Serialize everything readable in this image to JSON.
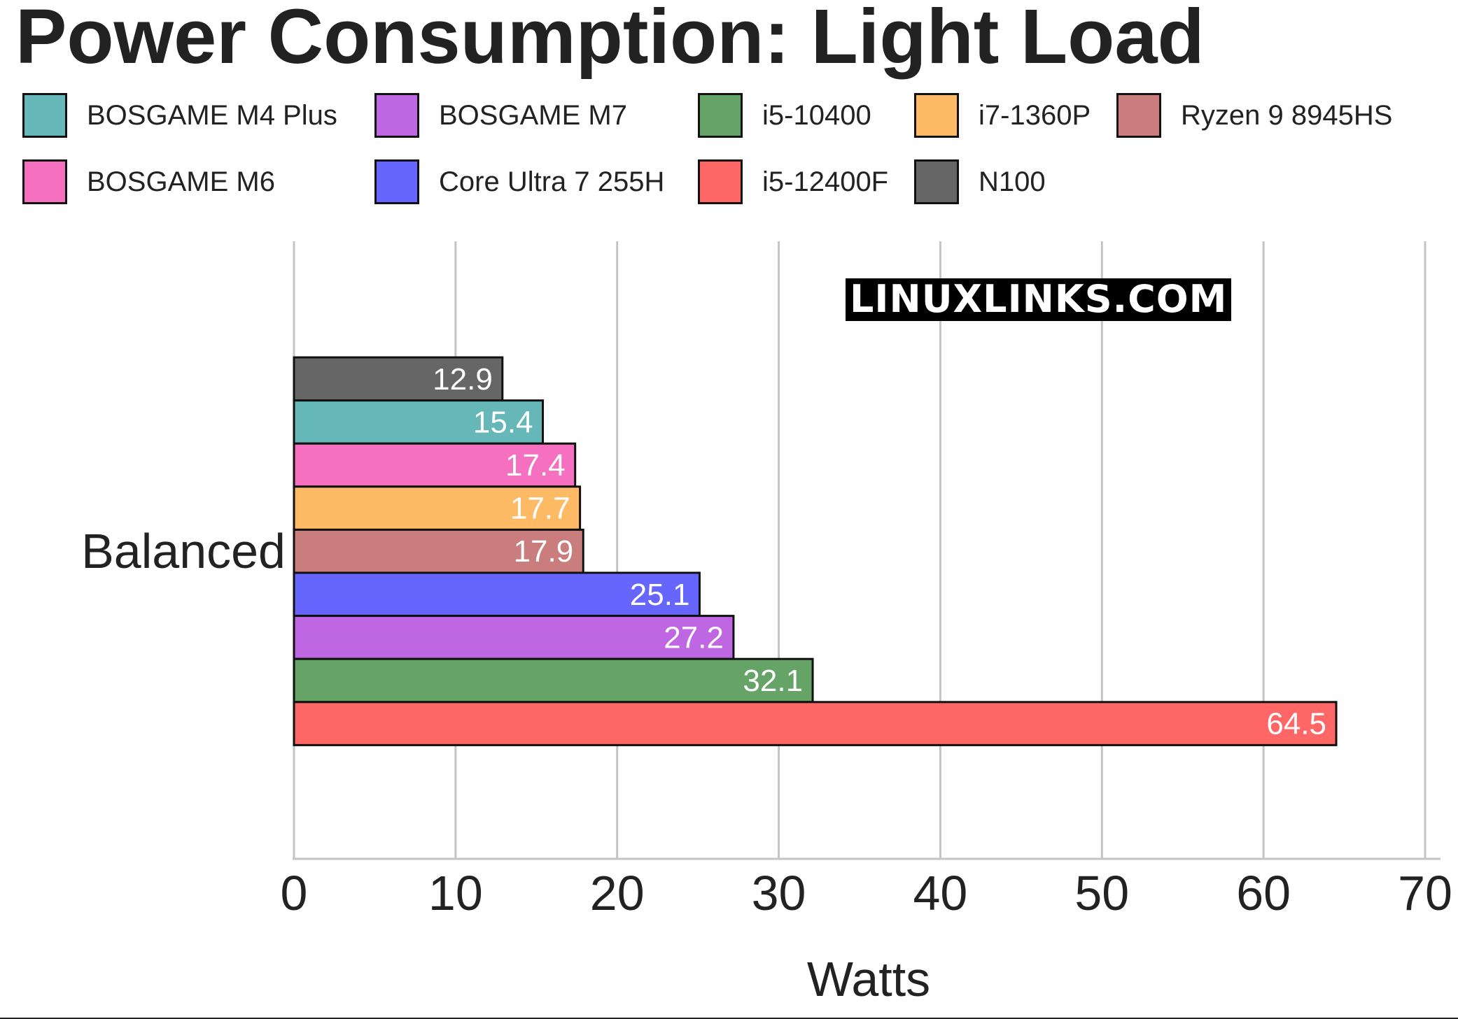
{
  "chart_data": {
    "type": "bar",
    "orientation": "horizontal",
    "title": "Power Consumption: Light Load",
    "xlabel": "Watts",
    "ylabel": "",
    "categories": [
      "Balanced"
    ],
    "xlim": [
      0,
      70
    ],
    "ticks": [
      "0",
      "10",
      "20",
      "30",
      "40",
      "50",
      "60",
      "70"
    ],
    "grid": true,
    "legend_position": "top",
    "watermark": "LINUXLINKS.COM",
    "legend": [
      {
        "name": "BOSGAME M4 Plus",
        "color": "#66b8b8"
      },
      {
        "name": "BOSGAME M7",
        "color": "#bf66e3"
      },
      {
        "name": "i5-10400",
        "color": "#66a366"
      },
      {
        "name": "i7-1360P",
        "color": "#ffba66"
      },
      {
        "name": "Ryzen 9 8945HS",
        "color": "#c97d7d"
      },
      {
        "name": "BOSGAME M6",
        "color": "#f570bf"
      },
      {
        "name": "Core Ultra 7 255H",
        "color": "#6666ff"
      },
      {
        "name": "i5-12400F",
        "color": "#ff6666"
      },
      {
        "name": "N100",
        "color": "#666666"
      }
    ],
    "series": [
      {
        "name": "N100",
        "value": 12.9,
        "label": "12.9",
        "color": "#666666"
      },
      {
        "name": "BOSGAME M4 Plus",
        "value": 15.4,
        "label": "15.4",
        "color": "#66b8b8"
      },
      {
        "name": "BOSGAME M6",
        "value": 17.4,
        "label": "17.4",
        "color": "#f570bf"
      },
      {
        "name": "i7-1360P",
        "value": 17.7,
        "label": "17.7",
        "color": "#ffba66"
      },
      {
        "name": "Ryzen 9 8945HS",
        "value": 17.9,
        "label": "17.9",
        "color": "#c97d7d"
      },
      {
        "name": "Core Ultra 7 255H",
        "value": 25.1,
        "label": "25.1",
        "color": "#6666ff"
      },
      {
        "name": "BOSGAME M7",
        "value": 27.2,
        "label": "27.2",
        "color": "#bf66e3"
      },
      {
        "name": "i5-10400",
        "value": 32.1,
        "label": "32.1",
        "color": "#66a366"
      },
      {
        "name": "i5-12400F",
        "value": 64.5,
        "label": "64.5",
        "color": "#ff6666"
      }
    ]
  }
}
